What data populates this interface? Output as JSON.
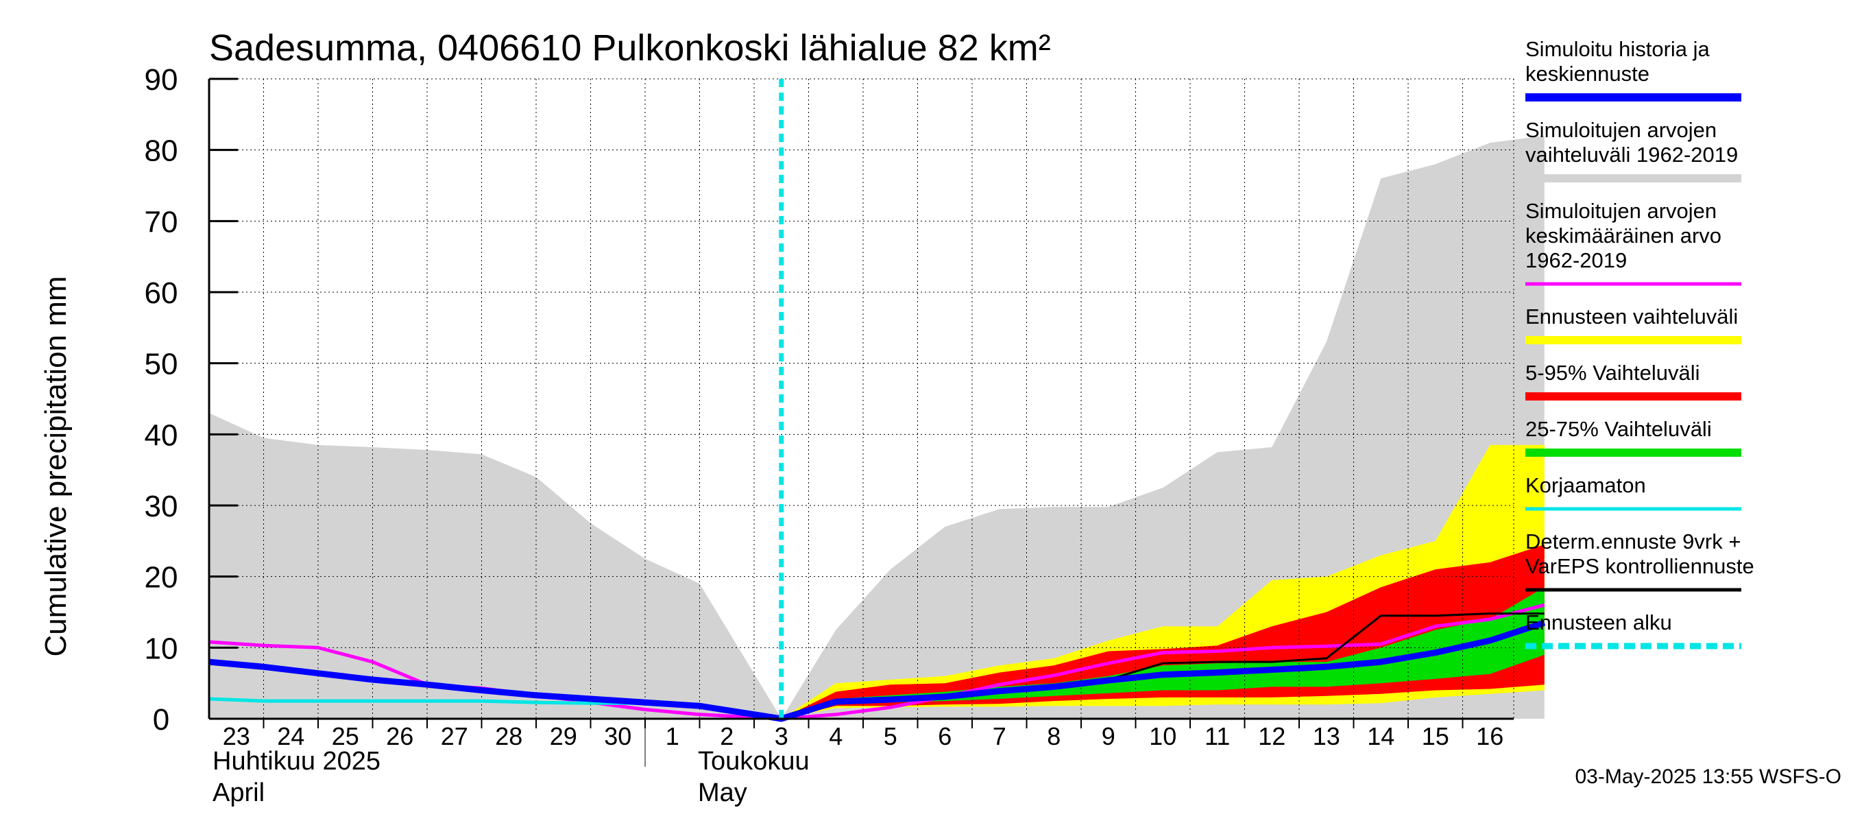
{
  "chart_data": {
    "type": "area",
    "title": "Sadesumma, 0406610 Pulkonkoski lähialue 82 km²",
    "ylabel": "Cumulative precipitation   mm",
    "xlabel": "",
    "ylim": [
      0,
      90
    ],
    "yticks": [
      "0",
      "10",
      "20",
      "30",
      "40",
      "50",
      "60",
      "70",
      "80",
      "90"
    ],
    "grid": true,
    "legend_position": "right",
    "forecast_start_day": 10.5,
    "x_day_labels": [
      "23",
      "24",
      "25",
      "26",
      "27",
      "28",
      "29",
      "30",
      "1",
      "2",
      "3",
      "4",
      "5",
      "6",
      "7",
      "8",
      "9",
      "10",
      "11",
      "12",
      "13",
      "14",
      "15",
      "16"
    ],
    "month_labels": {
      "april_fi": "Huhtikuu  2025",
      "april_en": "April",
      "may_fi": "Toukokuu",
      "may_en": "May"
    },
    "x": [
      0,
      1,
      2,
      3,
      4,
      5,
      6,
      7,
      8,
      9,
      10.5,
      11.5,
      12.5,
      13.5,
      14.5,
      15.5,
      16.5,
      17.5,
      18.5,
      19.5,
      20.5,
      21.5,
      22.5,
      23.5,
      24.5
    ],
    "series": [
      {
        "name": "Simuloitujen arvojen vaihteluväli 1962-2019",
        "kind": "band",
        "color": "#d3d3d3",
        "low": [
          0,
          0,
          0,
          0,
          0,
          0,
          0,
          0,
          0,
          0,
          0,
          0,
          0,
          0,
          0,
          0,
          0,
          0,
          0,
          0,
          0,
          0,
          0,
          0,
          0
        ],
        "high": [
          43,
          39.5,
          38.5,
          38.2,
          37.8,
          37.2,
          34,
          27.5,
          22.5,
          19,
          0,
          12.5,
          21,
          27,
          29.5,
          29.8,
          29.8,
          32.5,
          37.5,
          38.2,
          53,
          76,
          78,
          81,
          82
        ]
      },
      {
        "name": "Ennusteen vaihteluväli",
        "kind": "band",
        "color": "#ffff00",
        "low": [
          null,
          null,
          null,
          null,
          null,
          null,
          null,
          null,
          null,
          null,
          0,
          1.5,
          1.6,
          1.7,
          1.7,
          1.8,
          1.8,
          1.8,
          2,
          2,
          2,
          2.2,
          3,
          3.5,
          4
        ],
        "high": [
          null,
          null,
          null,
          null,
          null,
          null,
          null,
          null,
          null,
          null,
          0,
          5,
          5.5,
          6,
          7.5,
          8.5,
          11,
          13,
          13,
          19.5,
          20,
          23,
          25,
          38.5,
          38.5
        ]
      },
      {
        "name": "5-95% Vaihteluväli",
        "kind": "band",
        "color": "#ff0000",
        "low": [
          null,
          null,
          null,
          null,
          null,
          null,
          null,
          null,
          null,
          null,
          0,
          1.8,
          1.8,
          2,
          2.1,
          2.5,
          2.8,
          3,
          3,
          3,
          3.2,
          3.5,
          4,
          4.2,
          4.8
        ],
        "high": [
          null,
          null,
          null,
          null,
          null,
          null,
          null,
          null,
          null,
          null,
          0,
          3.8,
          4.8,
          5,
          6.5,
          7.5,
          9.5,
          9.8,
          10.3,
          13,
          15,
          18.5,
          21,
          22,
          24.5
        ]
      },
      {
        "name": "25-75% Vaihteluväli",
        "kind": "band",
        "color": "#00dd00",
        "low": [
          null,
          null,
          null,
          null,
          null,
          null,
          null,
          null,
          null,
          null,
          0,
          2.1,
          2.3,
          2.5,
          2.8,
          3.2,
          3.6,
          4,
          4,
          4.5,
          4.5,
          5,
          5.6,
          6.3,
          9
        ],
        "high": [
          null,
          null,
          null,
          null,
          null,
          null,
          null,
          null,
          null,
          null,
          0,
          2.8,
          3.3,
          3.8,
          4.5,
          5,
          6,
          7.5,
          7.8,
          8,
          8,
          10,
          12.5,
          14,
          18.5
        ]
      },
      {
        "name": "Simuloitujen arvojen keskimääräinen arvo 1962-2019",
        "kind": "line",
        "color": "#ff00ff",
        "width": 5,
        "values": [
          10.8,
          10.3,
          10,
          8,
          4.8,
          4.3,
          3.3,
          2.3,
          1.3,
          0.6,
          0,
          0.6,
          1.6,
          3.1,
          4.8,
          6.1,
          7.8,
          9.3,
          9.5,
          10,
          10.2,
          10.5,
          13,
          14,
          16
        ]
      },
      {
        "name": "Korjaamaton",
        "kind": "line",
        "color": "#00e5e5",
        "width": 5,
        "values": [
          2.8,
          2.5,
          2.5,
          2.5,
          2.5,
          2.5,
          2.3,
          2.2,
          2.2,
          1.8,
          0,
          null,
          null,
          null,
          null,
          null,
          null,
          null,
          null,
          null,
          null,
          null,
          null,
          null,
          null
        ]
      },
      {
        "name": "Determ.ennuste 9vrk + VarEPS kontrolliennuste",
        "kind": "line",
        "color": "#000000",
        "width": 3,
        "values": [
          null,
          null,
          null,
          null,
          null,
          null,
          null,
          null,
          null,
          null,
          0,
          2.5,
          2.8,
          3,
          4,
          4.5,
          5.5,
          7.8,
          8,
          8,
          8.5,
          14.5,
          14.5,
          14.8,
          14.8
        ]
      },
      {
        "name": "Simuloitu historia ja keskiennuste",
        "kind": "line",
        "color": "#0000ff",
        "width": 9,
        "values": [
          8,
          7.3,
          6.4,
          5.5,
          4.8,
          4,
          3.3,
          2.8,
          2.3,
          1.8,
          0,
          2.4,
          2.7,
          3.1,
          3.9,
          4.5,
          5.4,
          6.2,
          6.5,
          6.9,
          7.3,
          8,
          9.3,
          11,
          13.5
        ]
      }
    ],
    "legend": [
      {
        "label": "Simuloitu historia ja\nkeskiennuste",
        "color": "#0000ff",
        "style": "thick"
      },
      {
        "label": "Simuloitujen arvojen\nvaihteluväli 1962-2019",
        "color": "#d3d3d3",
        "style": "thick"
      },
      {
        "label": "Simuloitujen arvojen\nkeskimääräinen arvo\n   1962-2019",
        "color": "#ff00ff",
        "style": "thin"
      },
      {
        "label": "Ennusteen vaihteluväli",
        "color": "#ffff00",
        "style": "thick"
      },
      {
        "label": "5-95% Vaihteluväli",
        "color": "#ff0000",
        "style": "thick"
      },
      {
        "label": "25-75% Vaihteluväli",
        "color": "#00dd00",
        "style": "thick"
      },
      {
        "label": "Korjaamaton",
        "color": "#00e5e5",
        "style": "thin"
      },
      {
        "label": "Determ.ennuste 9vrk +\nVarEPS kontrolliennuste",
        "color": "#000000",
        "style": "thin"
      },
      {
        "label": "Ennusteen alku",
        "color": "#00e5e5",
        "style": "dashed"
      }
    ],
    "forecast_line_color": "#00e5e5"
  },
  "footer": {
    "timestamp": "03-May-2025 13:55 WSFS-O"
  }
}
